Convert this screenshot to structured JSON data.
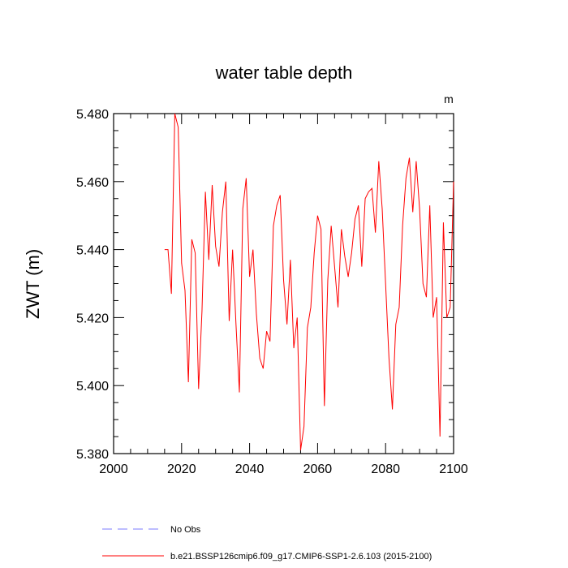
{
  "chart_data": {
    "type": "line",
    "title": "water table depth",
    "ylabel": "ZWT  (m)",
    "xlabel": "",
    "units_label": "m",
    "xlim": [
      2000,
      2100
    ],
    "ylim": [
      5.38,
      5.48
    ],
    "xticks": [
      2000,
      2020,
      2040,
      2060,
      2080,
      2100
    ],
    "yticks": [
      5.38,
      5.4,
      5.42,
      5.44,
      5.46,
      5.48
    ],
    "ytick_labels": [
      "5.380",
      "5.400",
      "5.420",
      "5.440",
      "5.460",
      "5.480"
    ],
    "xtick_labels": [
      "2000",
      "2020",
      "2040",
      "2060",
      "2080",
      "2100"
    ],
    "series": [
      {
        "name": "b.e21.BSSP126cmip6.f09_g17.CMIP6-SSP1-2.6.103 (2015-2100)",
        "color": "#ff0000",
        "dash": "solid",
        "x": [
          2015,
          2016,
          2017,
          2018,
          2019,
          2020,
          2021,
          2022,
          2023,
          2024,
          2025,
          2026,
          2027,
          2028,
          2029,
          2030,
          2031,
          2032,
          2033,
          2034,
          2035,
          2036,
          2037,
          2038,
          2039,
          2040,
          2041,
          2042,
          2043,
          2044,
          2045,
          2046,
          2047,
          2048,
          2049,
          2050,
          2051,
          2052,
          2053,
          2054,
          2055,
          2056,
          2057,
          2058,
          2059,
          2060,
          2061,
          2062,
          2063,
          2064,
          2065,
          2066,
          2067,
          2068,
          2069,
          2070,
          2071,
          2072,
          2073,
          2074,
          2075,
          2076,
          2077,
          2078,
          2079,
          2080,
          2081,
          2082,
          2083,
          2084,
          2085,
          2086,
          2087,
          2088,
          2089,
          2090,
          2091,
          2092,
          2093,
          2094,
          2095,
          2096,
          2097,
          2098,
          2099,
          2100
        ],
        "y": [
          5.44,
          5.44,
          5.427,
          5.48,
          5.476,
          5.436,
          5.428,
          5.401,
          5.443,
          5.439,
          5.399,
          5.422,
          5.457,
          5.437,
          5.459,
          5.441,
          5.435,
          5.451,
          5.46,
          5.419,
          5.44,
          5.418,
          5.398,
          5.452,
          5.461,
          5.432,
          5.44,
          5.421,
          5.408,
          5.405,
          5.416,
          5.413,
          5.447,
          5.453,
          5.456,
          5.431,
          5.418,
          5.437,
          5.411,
          5.42,
          5.381,
          5.388,
          5.417,
          5.423,
          5.439,
          5.45,
          5.446,
          5.394,
          5.431,
          5.447,
          5.435,
          5.423,
          5.446,
          5.438,
          5.432,
          5.439,
          5.449,
          5.453,
          5.435,
          5.455,
          5.457,
          5.458,
          5.445,
          5.466,
          5.452,
          5.43,
          5.408,
          5.393,
          5.418,
          5.423,
          5.447,
          5.461,
          5.467,
          5.451,
          5.466,
          5.452,
          5.43,
          5.426,
          5.453,
          5.42,
          5.426,
          5.385,
          5.448,
          5.42,
          5.423,
          5.46
        ]
      },
      {
        "name": "No Obs",
        "color": "#7b7bff",
        "dash": "dashed",
        "x": [],
        "y": []
      }
    ],
    "legend_position": "bottom-left"
  }
}
